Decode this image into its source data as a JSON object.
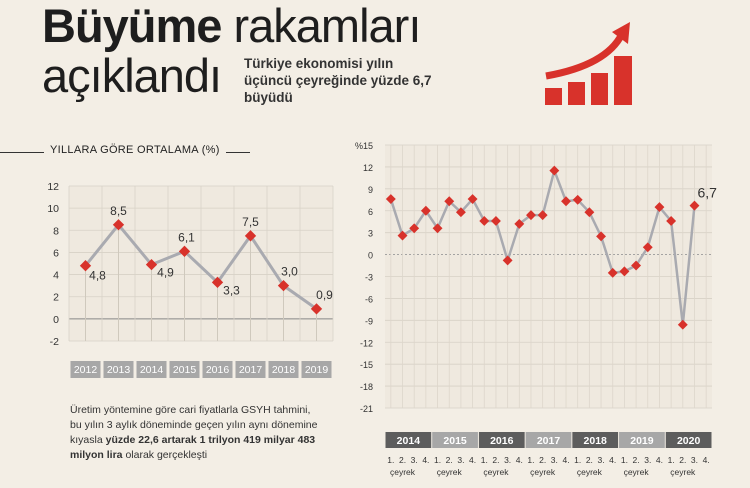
{
  "header": {
    "title_bold": "Büyüme",
    "title_rest": "rakamları",
    "title_line2": "açıklandı",
    "subtitle": "Türkiye ekonomisi yılın üçüncü çeyreğinde yüzde 6,7 büyüdü"
  },
  "left_chart": {
    "heading": "YILLARA GÖRE ORTALAMA (%)"
  },
  "body_text": {
    "part1": "Üretim yöntemine göre cari fiyatlarla GSYH tahmini, bu yılın 3 aylık döneminde geçen yılın aynı dönemine kıyasla",
    "bold": "yüzde 22,6 artarak 1 trilyon 419 milyar 483 milyon lira",
    "part2": "olarak gerçekleşti"
  },
  "colors": {
    "accent": "#d8322b",
    "line": "#a9aab0",
    "band": "#a7a7a7",
    "band_dark": "#5d5d5d",
    "background": "#f3eee5"
  },
  "icons": [
    "growth-bars-arrow-icon"
  ],
  "chart_data": [
    {
      "type": "line",
      "title": "YILLARA GÖRE ORTALAMA (%)",
      "categories": [
        "2012",
        "2013",
        "2014",
        "2015",
        "2016",
        "2017",
        "2018",
        "2019"
      ],
      "values": [
        4.8,
        8.5,
        4.9,
        6.1,
        3.3,
        7.5,
        3.0,
        0.9
      ],
      "data_labels": [
        "4,8",
        "8,5",
        "4,9",
        "6,1",
        "3,3",
        "7,5",
        "3,0",
        "0,9"
      ],
      "yticks": [
        -2,
        0,
        2,
        4,
        6,
        8,
        10,
        12
      ],
      "ylim": [
        -2,
        12
      ],
      "grid": true
    },
    {
      "type": "line",
      "years": [
        "2014",
        "2015",
        "2016",
        "2017",
        "2018",
        "2019",
        "2020"
      ],
      "quarter_labels": [
        "1.",
        "2.",
        "3.",
        "4."
      ],
      "quarter_word": "çeyrek",
      "values": [
        7.6,
        2.6,
        3.6,
        6.0,
        3.6,
        7.3,
        5.8,
        7.6,
        4.6,
        4.6,
        -0.8,
        4.2,
        5.4,
        5.4,
        11.5,
        7.3,
        7.5,
        5.8,
        2.5,
        -2.5,
        -2.3,
        -1.5,
        1.0,
        6.5,
        4.6,
        -9.6,
        6.7
      ],
      "last_label": "6,7",
      "y_unit": "%",
      "yticks": [
        15,
        12,
        9,
        6,
        3,
        0,
        -3,
        -6,
        -9,
        -12,
        -15,
        -18,
        -21
      ],
      "ylim": [
        -21,
        15
      ],
      "grid": true
    }
  ]
}
